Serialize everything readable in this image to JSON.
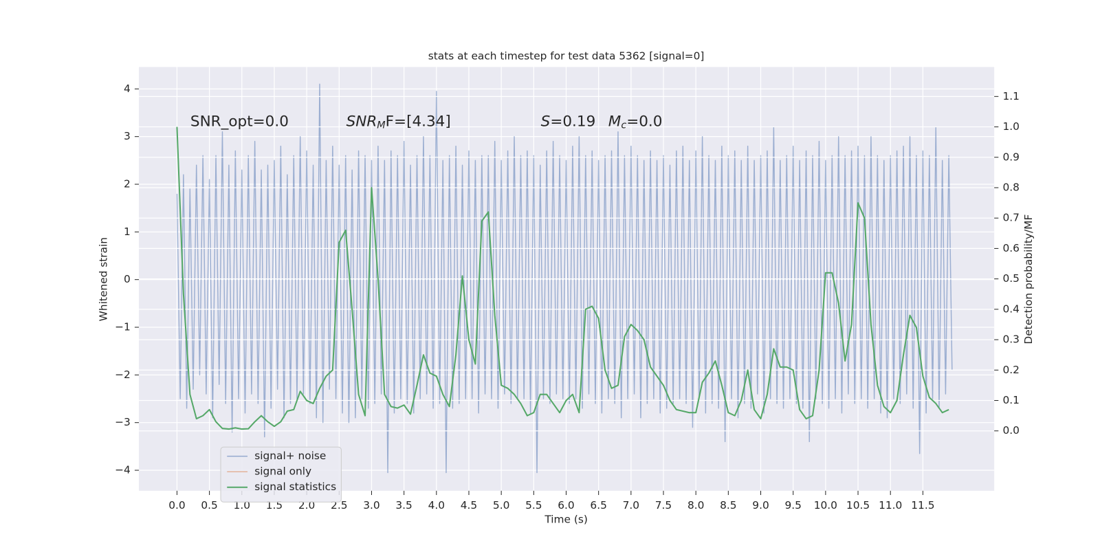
{
  "chart_data": {
    "type": "line",
    "title": "stats at each timestep for test data 5362 [signal=0]",
    "xlabel": "Time (s)",
    "ylabel": "Whitened strain",
    "y2label": "Detection probability/MF",
    "annotations": [
      [
        "SNR_opt=0.0"
      ],
      [
        "SNR",
        "M",
        "F=[4.34]"
      ],
      [
        "S",
        "=0.19",
        "M",
        "c",
        "=0.0"
      ]
    ],
    "xlim": [
      -0.587,
      12.6
    ],
    "ylim": [
      -4.43,
      4.46
    ],
    "y2lim": [
      -0.197,
      1.197
    ],
    "xticks": [
      {
        "value": 0,
        "label": "0.0"
      },
      {
        "value": 0.5,
        "label": "0.5"
      },
      {
        "value": 1,
        "label": "1.0"
      },
      {
        "value": 1.5,
        "label": "1.5"
      },
      {
        "value": 2,
        "label": "2.0"
      },
      {
        "value": 2.5,
        "label": "2.5"
      },
      {
        "value": 3,
        "label": "3.0"
      },
      {
        "value": 3.5,
        "label": "3.5"
      },
      {
        "value": 4,
        "label": "4.0"
      },
      {
        "value": 4.5,
        "label": "4.5"
      },
      {
        "value": 5,
        "label": "5.0"
      },
      {
        "value": 5.5,
        "label": "5.5"
      },
      {
        "value": 6,
        "label": "6.0"
      },
      {
        "value": 6.5,
        "label": "6.5"
      },
      {
        "value": 7,
        "label": "7.0"
      },
      {
        "value": 7.5,
        "label": "7.5"
      },
      {
        "value": 8,
        "label": "8.0"
      },
      {
        "value": 8.5,
        "label": "8.5"
      },
      {
        "value": 9,
        "label": "9.0"
      },
      {
        "value": 9.5,
        "label": "9.5"
      },
      {
        "value": 10,
        "label": "10.0"
      },
      {
        "value": 10.5,
        "label": "10.5"
      },
      {
        "value": 11,
        "label": "11.0"
      },
      {
        "value": 11.5,
        "label": "11.5"
      }
    ],
    "yticks": [
      {
        "value": -4,
        "label": "−4"
      },
      {
        "value": -3,
        "label": "−3"
      },
      {
        "value": -2,
        "label": "−2"
      },
      {
        "value": -1,
        "label": "−1"
      },
      0,
      1,
      2,
      3,
      4
    ],
    "y2ticks": [
      {
        "value": 0,
        "label": "0.0"
      },
      {
        "value": 0.1,
        "label": "0.1"
      },
      {
        "value": 0.2,
        "label": "0.2"
      },
      {
        "value": 0.3,
        "label": "0.3"
      },
      {
        "value": 0.4,
        "label": "0.4"
      },
      {
        "value": 0.5,
        "label": "0.5"
      },
      {
        "value": 0.6,
        "label": "0.6"
      },
      {
        "value": 0.7,
        "label": "0.7"
      },
      {
        "value": 0.8,
        "label": "0.8"
      },
      {
        "value": 0.9,
        "label": "0.9"
      },
      {
        "value": 1,
        "label": "1.0"
      },
      {
        "value": 1.1,
        "label": "1.1"
      }
    ],
    "grid": true,
    "legend": "lower left",
    "series": [
      {
        "name": "signal+ noise",
        "color": "#4c72b0",
        "x": [
          0,
          0.05,
          0.1,
          0.15,
          0.2,
          0.25,
          0.3,
          0.35,
          0.4,
          0.45,
          0.5,
          0.55,
          0.6,
          0.65,
          0.7,
          0.75,
          0.8,
          0.85,
          0.9,
          0.95,
          1,
          1.05,
          1.1,
          1.15,
          1.2,
          1.25,
          1.3,
          1.35,
          1.4,
          1.45,
          1.5,
          1.55,
          1.6,
          1.65,
          1.7,
          1.75,
          1.8,
          1.85,
          1.9,
          1.95,
          2,
          2.05,
          2.1,
          2.15,
          2.2,
          2.25,
          2.3,
          2.35,
          2.4,
          2.45,
          2.5,
          2.55,
          2.6,
          2.65,
          2.7,
          2.75,
          2.8,
          2.85,
          2.9,
          2.95,
          3,
          3.05,
          3.1,
          3.15,
          3.2,
          3.25,
          3.3,
          3.35,
          3.4,
          3.45,
          3.5,
          3.55,
          3.6,
          3.65,
          3.7,
          3.75,
          3.8,
          3.85,
          3.9,
          3.95,
          4,
          4.05,
          4.1,
          4.15,
          4.2,
          4.25,
          4.3,
          4.35,
          4.4,
          4.45,
          4.5,
          4.55,
          4.6,
          4.65,
          4.7,
          4.75,
          4.8,
          4.85,
          4.9,
          4.95,
          5,
          5.05,
          5.1,
          5.15,
          5.2,
          5.25,
          5.3,
          5.35,
          5.4,
          5.45,
          5.5,
          5.55,
          5.6,
          5.65,
          5.7,
          5.75,
          5.8,
          5.85,
          5.9,
          5.95,
          6,
          6.05,
          6.1,
          6.15,
          6.2,
          6.25,
          6.3,
          6.35,
          6.4,
          6.45,
          6.5,
          6.55,
          6.6,
          6.65,
          6.7,
          6.75,
          6.8,
          6.85,
          6.9,
          6.95,
          7,
          7.05,
          7.1,
          7.15,
          7.2,
          7.25,
          7.3,
          7.35,
          7.4,
          7.45,
          7.5,
          7.55,
          7.6,
          7.65,
          7.7,
          7.75,
          7.8,
          7.85,
          7.9,
          7.95,
          8,
          8.05,
          8.1,
          8.15,
          8.2,
          8.25,
          8.3,
          8.35,
          8.4,
          8.45,
          8.5,
          8.55,
          8.6,
          8.65,
          8.7,
          8.75,
          8.8,
          8.85,
          8.9,
          8.95,
          9,
          9.05,
          9.1,
          9.15,
          9.2,
          9.25,
          9.3,
          9.35,
          9.4,
          9.45,
          9.5,
          9.55,
          9.6,
          9.65,
          9.7,
          9.75,
          9.8,
          9.85,
          9.9,
          9.95,
          10,
          10.05,
          10.1,
          10.15,
          10.2,
          10.25,
          10.3,
          10.35,
          10.4,
          10.45,
          10.5,
          10.55,
          10.6,
          10.65,
          10.7,
          10.75,
          10.8,
          10.85,
          10.9,
          10.95,
          11,
          11.05,
          11.1,
          11.15,
          11.2,
          11.25,
          11.3,
          11.35,
          11.4,
          11.45,
          11.5,
          11.55,
          11.6,
          11.65,
          11.7,
          11.75,
          11.8,
          11.85,
          11.9,
          11.95
        ],
        "values": [
          1.8,
          -2.5,
          2.2,
          -2.7,
          1.9,
          -2.3,
          2.4,
          -2.0,
          2.6,
          -2.4,
          2.1,
          -2.9,
          2.6,
          -2.2,
          3.1,
          -2.6,
          2.4,
          -3.2,
          2.7,
          -2.5,
          2.3,
          -2.8,
          2.6,
          -2.4,
          2.9,
          -2.6,
          2.3,
          -3.3,
          2.4,
          -2.7,
          2.5,
          -2.3,
          2.8,
          -2.9,
          2.2,
          -2.6,
          2.6,
          -2.5,
          3.0,
          -2.4,
          2.7,
          -2.6,
          2.4,
          -2.9,
          4.1,
          -3.0,
          2.5,
          -2.3,
          2.8,
          -2.5,
          2.4,
          -2.8,
          2.6,
          -3.0,
          2.3,
          -2.9,
          2.7,
          -2.5,
          2.6,
          -2.7,
          2.5,
          -2.6,
          2.8,
          -2.4,
          2.5,
          -4.05,
          2.7,
          -2.8,
          2.6,
          -2.5,
          2.9,
          -2.6,
          2.4,
          -2.8,
          2.6,
          -2.5,
          3.0,
          -2.4,
          2.6,
          -2.7,
          3.95,
          -2.6,
          2.5,
          -4.05,
          2.6,
          -2.7,
          2.8,
          -2.6,
          2.4,
          -2.5,
          2.7,
          -2.5,
          2.5,
          -2.8,
          2.6,
          -2.4,
          2.6,
          -2.5,
          2.9,
          -2.7,
          2.5,
          -2.4,
          2.7,
          -2.6,
          3.0,
          -2.5,
          2.6,
          -2.5,
          2.7,
          -2.8,
          2.6,
          -4.05,
          2.4,
          -2.5,
          2.7,
          -2.6,
          2.9,
          -2.4,
          2.6,
          -2.5,
          2.5,
          -2.6,
          2.8,
          -2.5,
          3.0,
          -2.7,
          2.6,
          -2.4,
          2.7,
          -2.6,
          2.5,
          -2.8,
          2.6,
          -2.5,
          2.7,
          -2.6,
          3.1,
          -2.9,
          2.6,
          -2.5,
          2.8,
          -2.4,
          2.6,
          -2.9,
          2.5,
          -2.6,
          2.7,
          -2.5,
          2.5,
          -2.8,
          2.6,
          -2.7,
          2.4,
          -2.6,
          2.7,
          -2.5,
          2.8,
          -2.6,
          2.5,
          -3.1,
          2.7,
          -2.5,
          3.0,
          -2.8,
          2.6,
          -2.6,
          2.5,
          -2.7,
          2.8,
          -3.4,
          2.6,
          -2.5,
          2.7,
          -2.9,
          2.5,
          -2.6,
          2.8,
          -2.7,
          2.5,
          -2.4,
          2.6,
          -2.8,
          2.7,
          -2.5,
          3.2,
          -2.6,
          2.5,
          -2.7,
          2.6,
          -2.5,
          2.8,
          -2.6,
          2.5,
          -2.7,
          2.7,
          -3.4,
          2.6,
          -2.5,
          2.9,
          -2.6,
          2.5,
          -2.7,
          2.6,
          -2.5,
          3.0,
          -2.8,
          2.6,
          -2.4,
          2.7,
          -2.6,
          2.8,
          -2.5,
          2.6,
          -2.7,
          3.0,
          -2.5,
          2.6,
          -2.8,
          2.5,
          -2.9,
          2.6,
          -2.5,
          2.7,
          -2.6,
          2.8,
          -2.4,
          3.0,
          -2.7,
          2.6,
          -3.65,
          2.7,
          -2.8,
          2.6,
          -2.5,
          3.2,
          -2.7,
          2.5,
          -2.4,
          2.6,
          -1.9
        ]
      },
      {
        "name": "signal only",
        "color": "#dd8452"
      },
      {
        "name": "signal statistics",
        "color": "#55a868",
        "axis": "y2",
        "x": [
          0,
          0.1,
          0.2,
          0.3,
          0.4,
          0.5,
          0.6,
          0.7,
          0.8,
          0.9,
          1,
          1.1,
          1.2,
          1.3,
          1.4,
          1.5,
          1.6,
          1.7,
          1.8,
          1.9,
          2,
          2.1,
          2.2,
          2.3,
          2.4,
          2.5,
          2.6,
          2.7,
          2.8,
          2.9,
          3,
          3.1,
          3.2,
          3.3,
          3.4,
          3.5,
          3.6,
          3.7,
          3.8,
          3.9,
          4,
          4.1,
          4.2,
          4.3,
          4.4,
          4.5,
          4.6,
          4.7,
          4.8,
          4.9,
          5,
          5.1,
          5.2,
          5.3,
          5.4,
          5.5,
          5.6,
          5.7,
          5.8,
          5.9,
          6,
          6.1,
          6.2,
          6.3,
          6.4,
          6.5,
          6.6,
          6.7,
          6.8,
          6.9,
          7,
          7.1,
          7.2,
          7.3,
          7.4,
          7.5,
          7.6,
          7.7,
          7.8,
          7.9,
          8,
          8.1,
          8.2,
          8.3,
          8.4,
          8.5,
          8.6,
          8.7,
          8.8,
          8.9,
          9,
          9.1,
          9.2,
          9.3,
          9.4,
          9.5,
          9.6,
          9.7,
          9.8,
          9.9,
          10,
          10.1,
          10.2,
          10.3,
          10.4,
          10.5,
          10.6,
          10.7,
          10.8,
          10.9,
          11,
          11.1,
          11.2,
          11.3,
          11.4,
          11.5,
          11.6,
          11.7,
          11.8,
          11.9
        ],
        "values": [
          1.0,
          0.45,
          0.12,
          0.04,
          0.05,
          0.07,
          0.03,
          0.008,
          0.006,
          0.01,
          0.006,
          0.007,
          0.03,
          0.05,
          0.03,
          0.015,
          0.03,
          0.065,
          0.07,
          0.13,
          0.1,
          0.09,
          0.14,
          0.18,
          0.2,
          0.62,
          0.66,
          0.4,
          0.12,
          0.05,
          0.8,
          0.5,
          0.12,
          0.08,
          0.075,
          0.085,
          0.055,
          0.15,
          0.25,
          0.19,
          0.18,
          0.12,
          0.08,
          0.25,
          0.51,
          0.3,
          0.22,
          0.69,
          0.72,
          0.38,
          0.15,
          0.14,
          0.12,
          0.09,
          0.05,
          0.06,
          0.12,
          0.12,
          0.09,
          0.06,
          0.1,
          0.12,
          0.06,
          0.4,
          0.41,
          0.37,
          0.2,
          0.14,
          0.15,
          0.31,
          0.35,
          0.33,
          0.3,
          0.21,
          0.18,
          0.15,
          0.1,
          0.07,
          0.065,
          0.06,
          0.06,
          0.16,
          0.19,
          0.23,
          0.15,
          0.06,
          0.05,
          0.1,
          0.2,
          0.07,
          0.04,
          0.12,
          0.27,
          0.21,
          0.21,
          0.2,
          0.07,
          0.04,
          0.05,
          0.2,
          0.52,
          0.52,
          0.42,
          0.23,
          0.35,
          0.75,
          0.7,
          0.35,
          0.15,
          0.08,
          0.06,
          0.1,
          0.25,
          0.38,
          0.34,
          0.18,
          0.11,
          0.09,
          0.06,
          0.07
        ]
      }
    ]
  }
}
